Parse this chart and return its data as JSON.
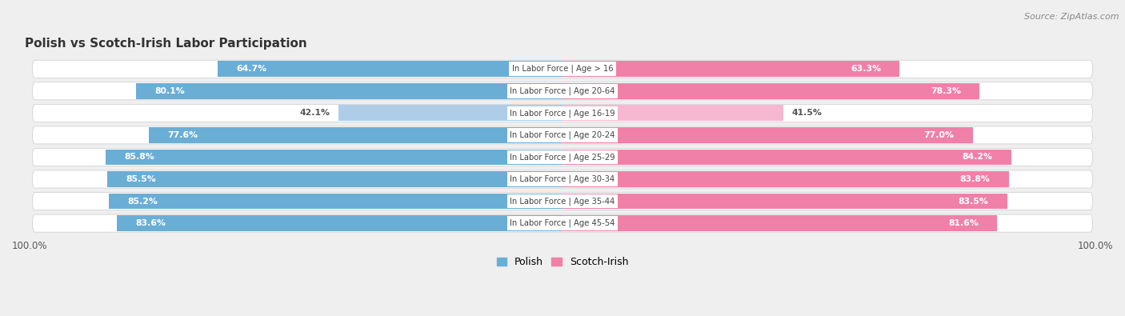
{
  "title": "Polish vs Scotch-Irish Labor Participation",
  "source": "Source: ZipAtlas.com",
  "categories": [
    "In Labor Force | Age > 16",
    "In Labor Force | Age 20-64",
    "In Labor Force | Age 16-19",
    "In Labor Force | Age 20-24",
    "In Labor Force | Age 25-29",
    "In Labor Force | Age 30-34",
    "In Labor Force | Age 35-44",
    "In Labor Force | Age 45-54"
  ],
  "polish_values": [
    64.7,
    80.1,
    42.1,
    77.6,
    85.8,
    85.5,
    85.2,
    83.6
  ],
  "scotch_values": [
    63.3,
    78.3,
    41.5,
    77.0,
    84.2,
    83.8,
    83.5,
    81.6
  ],
  "polish_color": "#6aaed6",
  "polish_color_light": "#aecde8",
  "scotch_color": "#f080a8",
  "scotch_color_light": "#f5b8d0",
  "label_white": "#ffffff",
  "label_dark": "#555555",
  "bg_color": "#efefef",
  "row_bg": "#ffffff",
  "row_gap_color": "#e0e0e0",
  "max_val": 100.0,
  "bar_height": 0.72,
  "legend_labels": [
    "Polish",
    "Scotch-Irish"
  ],
  "value_threshold": 60
}
